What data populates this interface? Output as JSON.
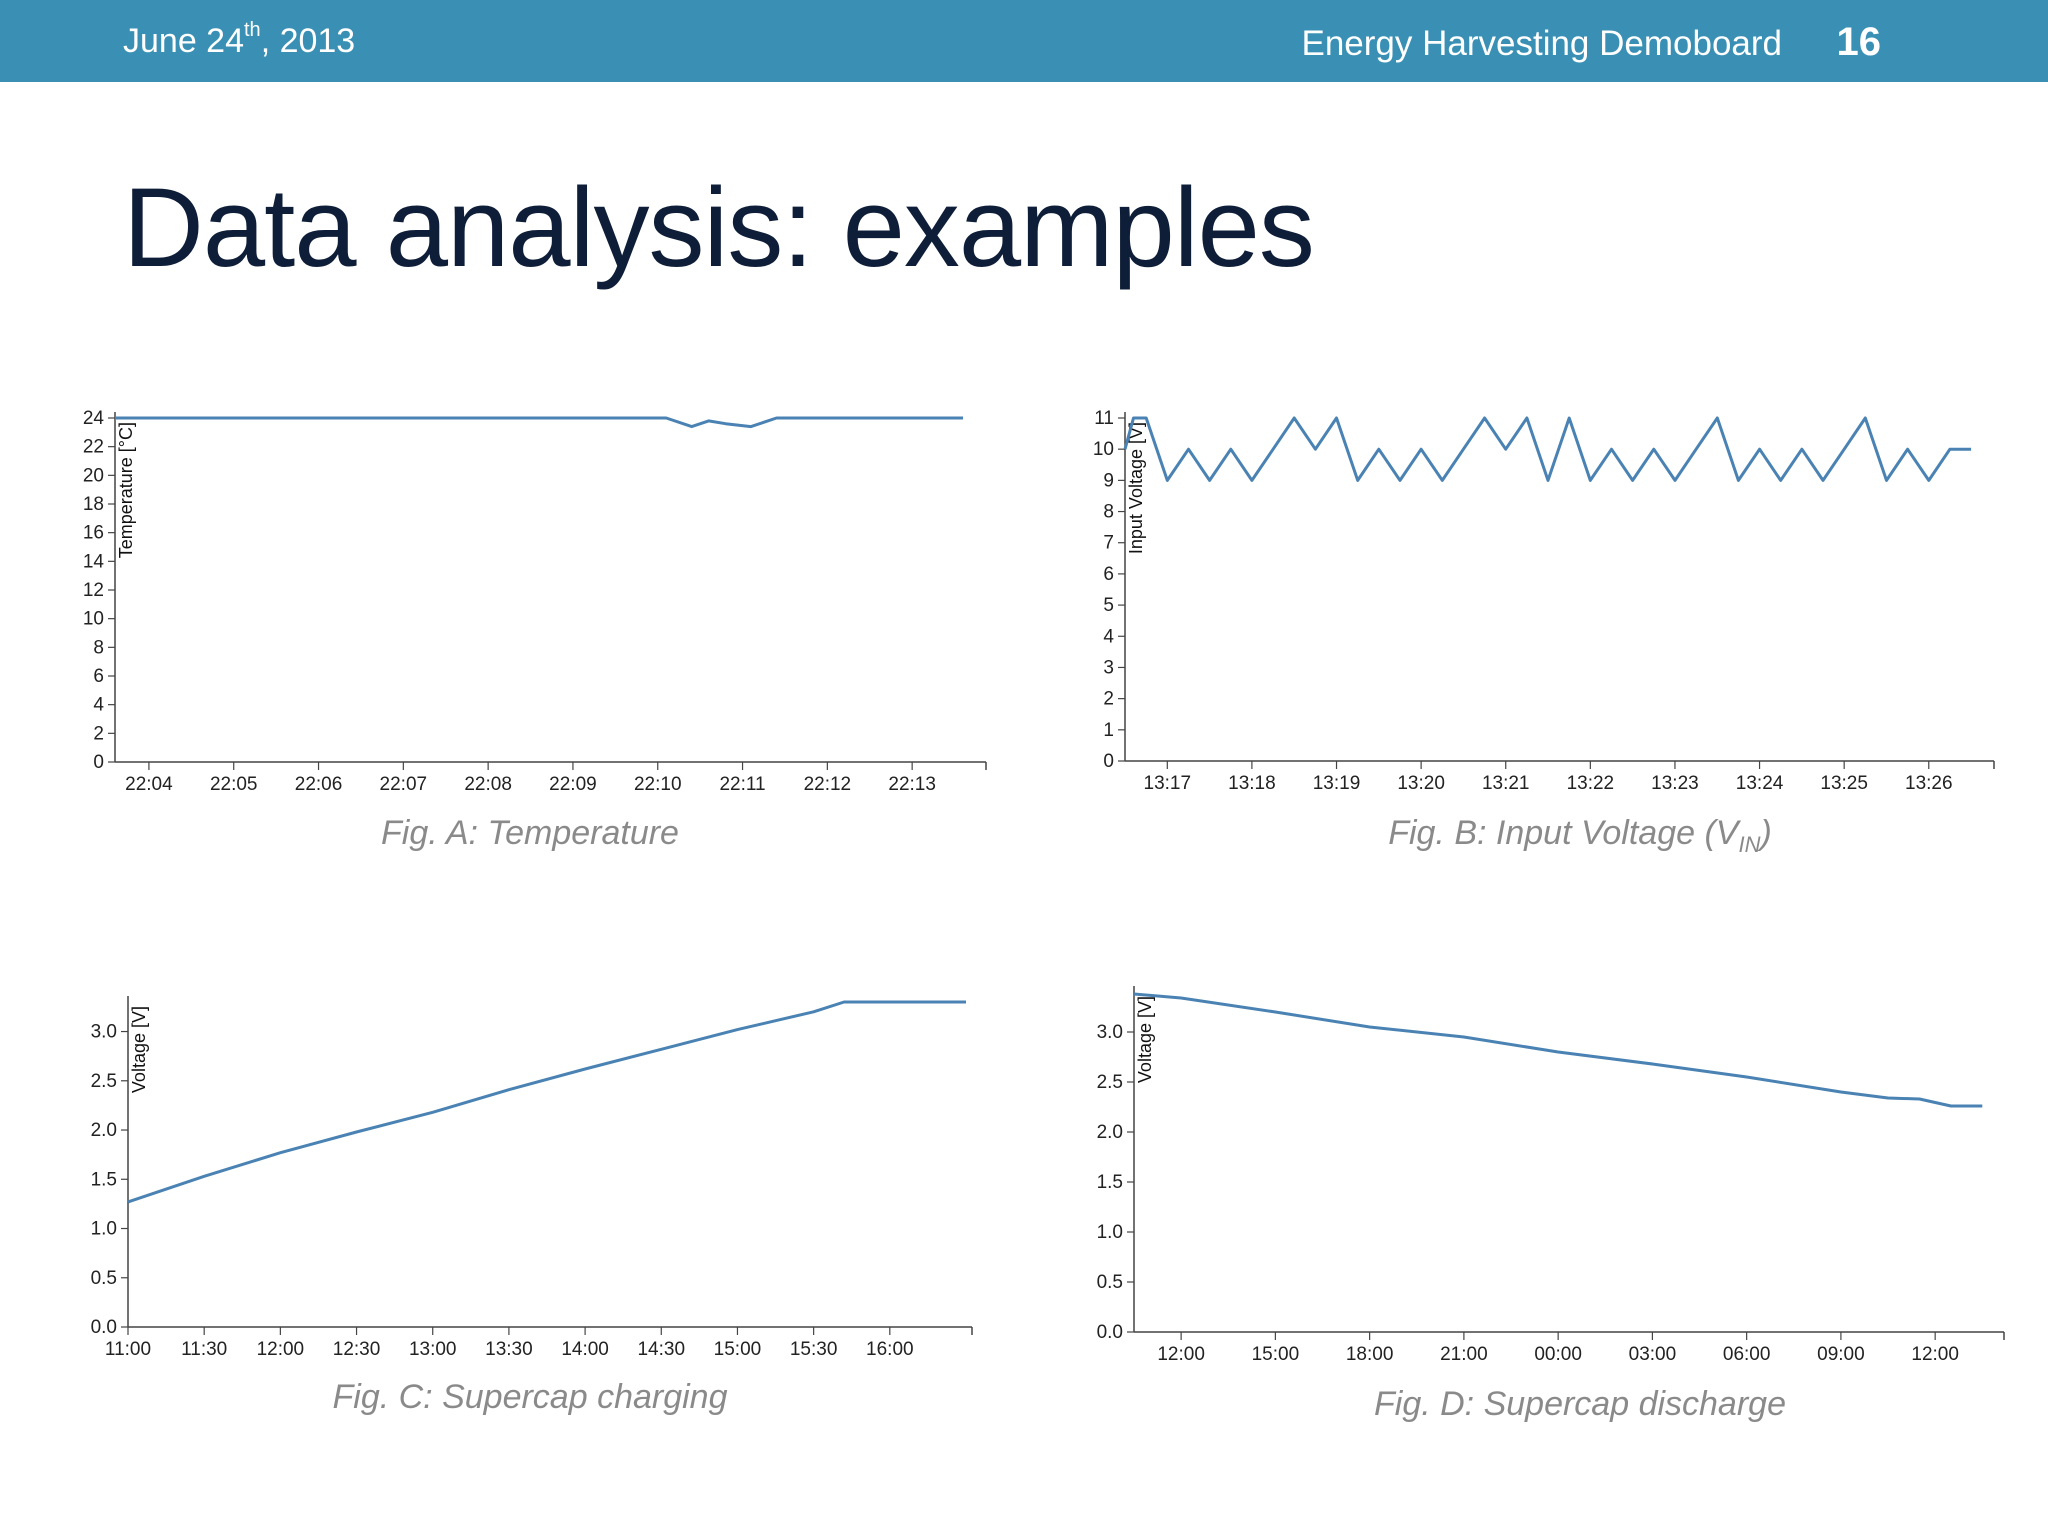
{
  "header": {
    "date_main": "June 24",
    "date_sup": "th",
    "date_year": ", 2013",
    "deck_title": "Energy Harvesting Demoboard",
    "page_number": "16"
  },
  "slide": {
    "title": "Data analysis: examples"
  },
  "captions": {
    "a": "Fig. A: Temperature",
    "b_prefix": "Fig. B: Input Voltage (V",
    "b_sub": "IN",
    "b_suffix": ")",
    "c": "Fig. C: Supercap charging",
    "d": "Fig. D: Supercap discharge"
  },
  "colors": {
    "header_bg": "#3990b4",
    "line": "#4a83b3",
    "axis": "#444444"
  },
  "chart_data": [
    {
      "id": "a",
      "type": "line",
      "ylabel": "Temperature [°C]",
      "ylim": [
        0,
        24
      ],
      "yticks": [
        0,
        2,
        4,
        6,
        8,
        10,
        12,
        14,
        16,
        18,
        20,
        22,
        24
      ],
      "xlim": [
        0,
        10.2
      ],
      "xticks": [
        0.4,
        1.4,
        2.4,
        3.4,
        4.4,
        5.4,
        6.4,
        7.4,
        8.4,
        9.4
      ],
      "xticklabels": [
        "22:04",
        "22:05",
        "22:06",
        "22:07",
        "22:08",
        "22:09",
        "22:10",
        "22:11",
        "22:12",
        "22:13"
      ],
      "x": [
        0,
        6.5,
        6.8,
        7.0,
        7.2,
        7.5,
        7.8,
        8.0,
        10.0
      ],
      "y": [
        24,
        24,
        23.4,
        23.8,
        23.6,
        23.4,
        24,
        24,
        24
      ],
      "grid": false
    },
    {
      "id": "b",
      "type": "line",
      "ylabel": "Input Voltage [V]",
      "ylim": [
        0,
        11
      ],
      "yticks": [
        0,
        1,
        2,
        3,
        4,
        5,
        6,
        7,
        8,
        9,
        10,
        11
      ],
      "xlim": [
        0,
        10.2
      ],
      "xticks": [
        0.5,
        1.5,
        2.5,
        3.5,
        4.5,
        5.5,
        6.5,
        7.5,
        8.5,
        9.5
      ],
      "xticklabels": [
        "13:17",
        "13:18",
        "13:19",
        "13:20",
        "13:21",
        "13:22",
        "13:23",
        "13:24",
        "13:25",
        "13:26"
      ],
      "x": [
        0,
        0.1,
        0.25,
        0.5,
        0.75,
        1.0,
        1.25,
        1.5,
        1.75,
        2.0,
        2.25,
        2.5,
        2.75,
        3.0,
        3.25,
        3.5,
        3.75,
        4.0,
        4.25,
        4.5,
        4.75,
        5.0,
        5.25,
        5.5,
        5.75,
        6.0,
        6.25,
        6.5,
        6.75,
        7.0,
        7.25,
        7.5,
        7.75,
        8.0,
        8.25,
        8.5,
        8.75,
        9.0,
        9.25,
        9.5,
        9.75,
        10.0
      ],
      "y": [
        10,
        11,
        11,
        9,
        10,
        9,
        10,
        9,
        10,
        11,
        10,
        11,
        9,
        10,
        9,
        10,
        9,
        10,
        11,
        10,
        11,
        9,
        11,
        9,
        10,
        9,
        10,
        9,
        10,
        11,
        9,
        10,
        9,
        10,
        9,
        10,
        11,
        9,
        10,
        9,
        10,
        10
      ],
      "grid": false
    },
    {
      "id": "c",
      "type": "line",
      "ylabel": "Voltage [V]",
      "ylim": [
        0,
        3.3
      ],
      "yticks": [
        0.0,
        0.5,
        1.0,
        1.5,
        2.0,
        2.5,
        3.0
      ],
      "yticklabels": [
        "0.0",
        "0.5",
        "1.0",
        "1.5",
        "2.0",
        "2.5",
        "3.0"
      ],
      "xlim": [
        0,
        330
      ],
      "xticks": [
        0,
        30,
        60,
        90,
        120,
        150,
        180,
        210,
        240,
        270,
        300
      ],
      "xticklabels": [
        "11:00",
        "11:30",
        "12:00",
        "12:30",
        "13:00",
        "13:30",
        "14:00",
        "14:30",
        "15:00",
        "15:30",
        "16:00"
      ],
      "x": [
        0,
        30,
        60,
        90,
        120,
        150,
        180,
        210,
        240,
        270,
        282,
        330
      ],
      "y": [
        1.27,
        1.53,
        1.77,
        1.98,
        2.18,
        2.41,
        2.62,
        2.82,
        3.02,
        3.2,
        3.3,
        3.3
      ],
      "grid": false
    },
    {
      "id": "d",
      "type": "line",
      "ylabel": "Voltage [V]",
      "ylim": [
        0,
        3.4
      ],
      "yticks": [
        0.0,
        0.5,
        1.0,
        1.5,
        2.0,
        2.5,
        3.0
      ],
      "yticklabels": [
        "0.0",
        "0.5",
        "1.0",
        "1.5",
        "2.0",
        "2.5",
        "3.0"
      ],
      "xlim": [
        0,
        27.5
      ],
      "xticks": [
        1.5,
        4.5,
        7.5,
        10.5,
        13.5,
        16.5,
        19.5,
        22.5,
        25.5
      ],
      "xticklabels": [
        "12:00",
        "15:00",
        "18:00",
        "21:00",
        "00:00",
        "03:00",
        "06:00",
        "09:00",
        "12:00"
      ],
      "x": [
        0,
        1.5,
        4.5,
        7.5,
        10.5,
        13.5,
        16.5,
        19.5,
        22.5,
        24.0,
        25.0,
        26.0,
        27.0
      ],
      "y": [
        3.38,
        3.34,
        3.2,
        3.05,
        2.95,
        2.8,
        2.68,
        2.55,
        2.4,
        2.34,
        2.33,
        2.26,
        2.26
      ],
      "grid": false
    }
  ]
}
